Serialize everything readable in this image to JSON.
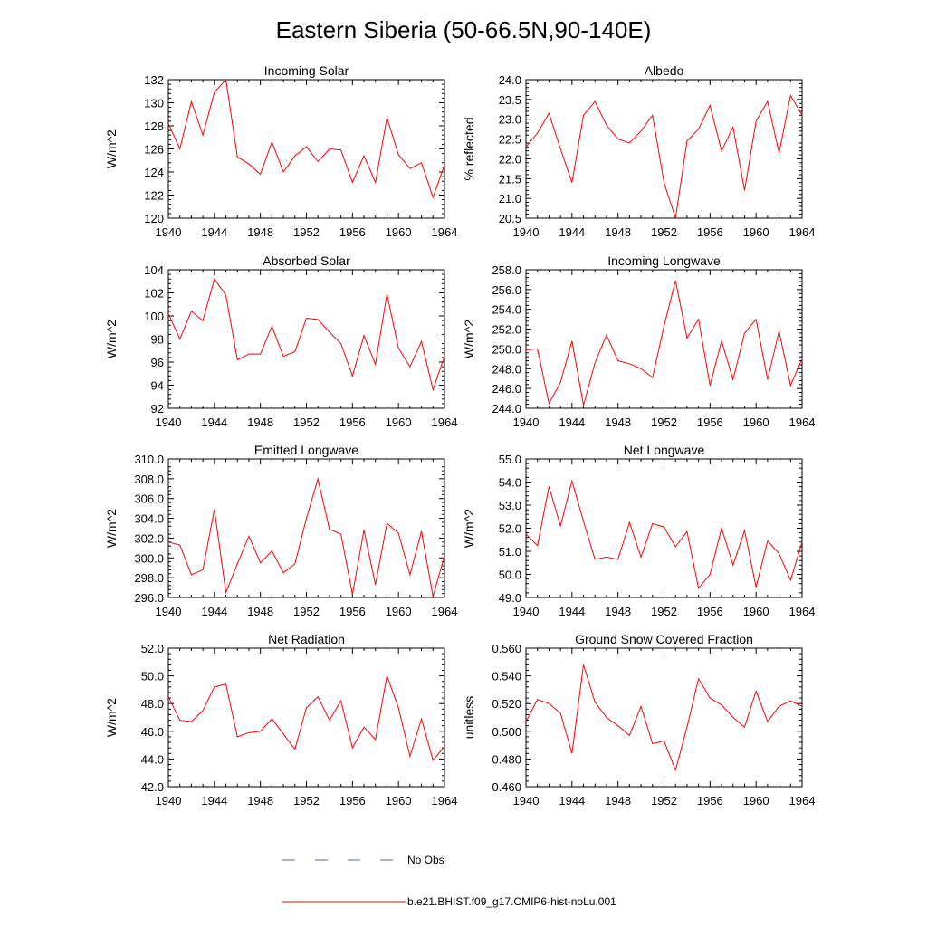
{
  "figure": {
    "title": "Eastern Siberia (50-66.5N,90-140E)",
    "series_color": "#ff0000",
    "obs_color": "#5060c0",
    "legend": [
      {
        "label": "No Obs",
        "style": "dashed"
      },
      {
        "label": "b.e21.BHIST.f09_g17.CMIP6-hist-noLu.001",
        "style": "solid"
      }
    ]
  },
  "chart_data": [
    {
      "type": "line",
      "title": "Incoming Solar",
      "ylabel": "W/m^2",
      "xlim": [
        1940,
        1964
      ],
      "ylim": [
        120,
        132
      ],
      "xticks": [
        "1940",
        "1944",
        "1948",
        "1952",
        "1956",
        "1960",
        "1964"
      ],
      "yticks": [
        "120",
        "122",
        "124",
        "126",
        "128",
        "130",
        "132"
      ],
      "series": [
        {
          "x": [
            1940,
            1941,
            1942,
            1943,
            1944,
            1945,
            1946,
            1947,
            1948,
            1949,
            1950,
            1951,
            1952,
            1953,
            1954,
            1955,
            1956,
            1957,
            1958,
            1959,
            1960,
            1961,
            1962,
            1963,
            1964
          ],
          "values": [
            128.2,
            126.0,
            130.1,
            127.2,
            130.9,
            132.0,
            125.3,
            124.7,
            123.8,
            126.6,
            124.0,
            125.4,
            126.2,
            124.9,
            126.0,
            125.9,
            123.1,
            125.4,
            123.1,
            128.7,
            125.5,
            124.3,
            124.8,
            121.8,
            124.6
          ]
        }
      ]
    },
    {
      "type": "line",
      "title": "Albedo",
      "ylabel": "% reflected",
      "xlim": [
        1940,
        1964
      ],
      "ylim": [
        20.5,
        24.0
      ],
      "xticks": [
        "1940",
        "1944",
        "1948",
        "1952",
        "1956",
        "1960",
        "1964"
      ],
      "yticks": [
        "20.5",
        "21.0",
        "21.5",
        "22.0",
        "22.5",
        "23.0",
        "23.5",
        "24.0"
      ],
      "series": [
        {
          "x": [
            1940,
            1941,
            1942,
            1943,
            1944,
            1945,
            1946,
            1947,
            1948,
            1949,
            1950,
            1951,
            1952,
            1953,
            1954,
            1955,
            1956,
            1957,
            1958,
            1959,
            1960,
            1961,
            1962,
            1963,
            1964
          ],
          "values": [
            22.3,
            22.65,
            23.15,
            22.25,
            21.4,
            23.1,
            23.45,
            22.85,
            22.5,
            22.4,
            22.7,
            23.1,
            21.4,
            20.5,
            22.45,
            22.75,
            23.35,
            22.2,
            22.8,
            21.2,
            22.95,
            23.45,
            22.15,
            23.6,
            23.1
          ]
        }
      ]
    },
    {
      "type": "line",
      "title": "Absorbed Solar",
      "ylabel": "W/m^2",
      "xlim": [
        1940,
        1964
      ],
      "ylim": [
        92,
        104
      ],
      "xticks": [
        "1940",
        "1944",
        "1948",
        "1952",
        "1956",
        "1960",
        "1964"
      ],
      "yticks": [
        "92",
        "94",
        "96",
        "98",
        "100",
        "102",
        "104"
      ],
      "series": [
        {
          "x": [
            1940,
            1941,
            1942,
            1943,
            1944,
            1945,
            1946,
            1947,
            1948,
            1949,
            1950,
            1951,
            1952,
            1953,
            1954,
            1955,
            1956,
            1957,
            1958,
            1959,
            1960,
            1961,
            1962,
            1963,
            1964
          ],
          "values": [
            100.2,
            98.0,
            100.4,
            99.6,
            103.2,
            101.8,
            96.2,
            96.7,
            96.7,
            99.1,
            96.5,
            96.9,
            99.8,
            99.7,
            98.6,
            97.6,
            94.8,
            98.3,
            95.8,
            101.9,
            97.2,
            95.6,
            97.8,
            93.6,
            96.5
          ]
        }
      ]
    },
    {
      "type": "line",
      "title": "Incoming Longwave",
      "ylabel": "W/m^2",
      "xlim": [
        1940,
        1964
      ],
      "ylim": [
        244.0,
        258.0
      ],
      "xticks": [
        "1940",
        "1944",
        "1948",
        "1952",
        "1956",
        "1960",
        "1964"
      ],
      "yticks": [
        "244.0",
        "246.0",
        "248.0",
        "250.0",
        "252.0",
        "254.0",
        "256.0",
        "258.0"
      ],
      "series": [
        {
          "x": [
            1940,
            1941,
            1942,
            1943,
            1944,
            1945,
            1946,
            1947,
            1948,
            1949,
            1950,
            1951,
            1952,
            1953,
            1954,
            1955,
            1956,
            1957,
            1958,
            1959,
            1960,
            1961,
            1962,
            1963,
            1964
          ],
          "values": [
            249.9,
            250.0,
            244.5,
            246.6,
            250.8,
            244.3,
            248.6,
            251.4,
            248.8,
            248.5,
            248.0,
            247.1,
            252.3,
            256.9,
            251.1,
            253.0,
            246.3,
            250.8,
            246.9,
            251.6,
            253.0,
            246.9,
            251.8,
            246.3,
            249.0
          ]
        }
      ]
    },
    {
      "type": "line",
      "title": "Emitted Longwave",
      "ylabel": "W/m^2",
      "xlim": [
        1940,
        1964
      ],
      "ylim": [
        296.0,
        310.0
      ],
      "xticks": [
        "1940",
        "1944",
        "1948",
        "1952",
        "1956",
        "1960",
        "1964"
      ],
      "yticks": [
        "296.0",
        "298.0",
        "300.0",
        "302.0",
        "304.0",
        "306.0",
        "308.0",
        "310.0"
      ],
      "series": [
        {
          "x": [
            1940,
            1941,
            1942,
            1943,
            1944,
            1945,
            1946,
            1947,
            1948,
            1949,
            1950,
            1951,
            1952,
            1953,
            1954,
            1955,
            1956,
            1957,
            1958,
            1959,
            1960,
            1961,
            1962,
            1963,
            1964
          ],
          "values": [
            301.6,
            301.3,
            298.3,
            298.8,
            304.9,
            296.5,
            299.4,
            302.2,
            299.5,
            300.7,
            298.5,
            299.4,
            304.0,
            308.0,
            302.9,
            302.4,
            296.3,
            302.8,
            297.3,
            303.5,
            302.5,
            298.3,
            302.7,
            296.1,
            300.2
          ]
        }
      ]
    },
    {
      "type": "line",
      "title": "Net Longwave",
      "ylabel": "W/m^2",
      "xlim": [
        1940,
        1964
      ],
      "ylim": [
        49.0,
        55.0
      ],
      "xticks": [
        "1940",
        "1944",
        "1948",
        "1952",
        "1956",
        "1960",
        "1964"
      ],
      "yticks": [
        "49.0",
        "50.0",
        "51.0",
        "52.0",
        "53.0",
        "54.0",
        "55.0"
      ],
      "series": [
        {
          "x": [
            1940,
            1941,
            1942,
            1943,
            1944,
            1945,
            1946,
            1947,
            1948,
            1949,
            1950,
            1951,
            1952,
            1953,
            1954,
            1955,
            1956,
            1957,
            1958,
            1959,
            1960,
            1961,
            1962,
            1963,
            1964
          ],
          "values": [
            51.75,
            51.25,
            53.8,
            52.1,
            54.05,
            52.3,
            50.65,
            50.75,
            50.65,
            52.25,
            50.75,
            52.2,
            52.05,
            51.2,
            51.85,
            49.4,
            50.0,
            52.0,
            50.4,
            51.9,
            49.45,
            51.45,
            50.9,
            49.75,
            51.4
          ]
        }
      ]
    },
    {
      "type": "line",
      "title": "Net Radiation",
      "ylabel": "W/m^2",
      "xlim": [
        1940,
        1964
      ],
      "ylim": [
        42.0,
        52.0
      ],
      "xticks": [
        "1940",
        "1944",
        "1948",
        "1952",
        "1956",
        "1960",
        "1964"
      ],
      "yticks": [
        "42.0",
        "44.0",
        "46.0",
        "48.0",
        "50.0",
        "52.0"
      ],
      "series": [
        {
          "x": [
            1940,
            1941,
            1942,
            1943,
            1944,
            1945,
            1946,
            1947,
            1948,
            1949,
            1950,
            1951,
            1952,
            1953,
            1954,
            1955,
            1956,
            1957,
            1958,
            1959,
            1960,
            1961,
            1962,
            1963,
            1964
          ],
          "values": [
            48.5,
            46.8,
            46.7,
            47.5,
            49.2,
            49.4,
            45.6,
            45.9,
            46.0,
            46.9,
            45.8,
            44.7,
            47.7,
            48.5,
            46.8,
            48.2,
            44.8,
            46.3,
            45.4,
            50.0,
            47.7,
            44.2,
            46.9,
            43.9,
            44.9
          ]
        }
      ]
    },
    {
      "type": "line",
      "title": "Ground Snow Covered Fraction",
      "ylabel": "unitless",
      "xlim": [
        1940,
        1964
      ],
      "ylim": [
        0.46,
        0.56
      ],
      "xticks": [
        "1940",
        "1944",
        "1948",
        "1952",
        "1956",
        "1960",
        "1964"
      ],
      "yticks": [
        "0.460",
        "0.480",
        "0.500",
        "0.520",
        "0.540",
        "0.560"
      ],
      "series": [
        {
          "x": [
            1940,
            1941,
            1942,
            1943,
            1944,
            1945,
            1946,
            1947,
            1948,
            1949,
            1950,
            1951,
            1952,
            1953,
            1954,
            1955,
            1956,
            1957,
            1958,
            1959,
            1960,
            1961,
            1962,
            1963,
            1964
          ],
          "values": [
            0.507,
            0.523,
            0.52,
            0.513,
            0.484,
            0.548,
            0.521,
            0.51,
            0.504,
            0.497,
            0.518,
            0.491,
            0.493,
            0.472,
            0.503,
            0.538,
            0.524,
            0.519,
            0.51,
            0.503,
            0.529,
            0.507,
            0.518,
            0.522,
            0.518
          ]
        }
      ]
    }
  ]
}
